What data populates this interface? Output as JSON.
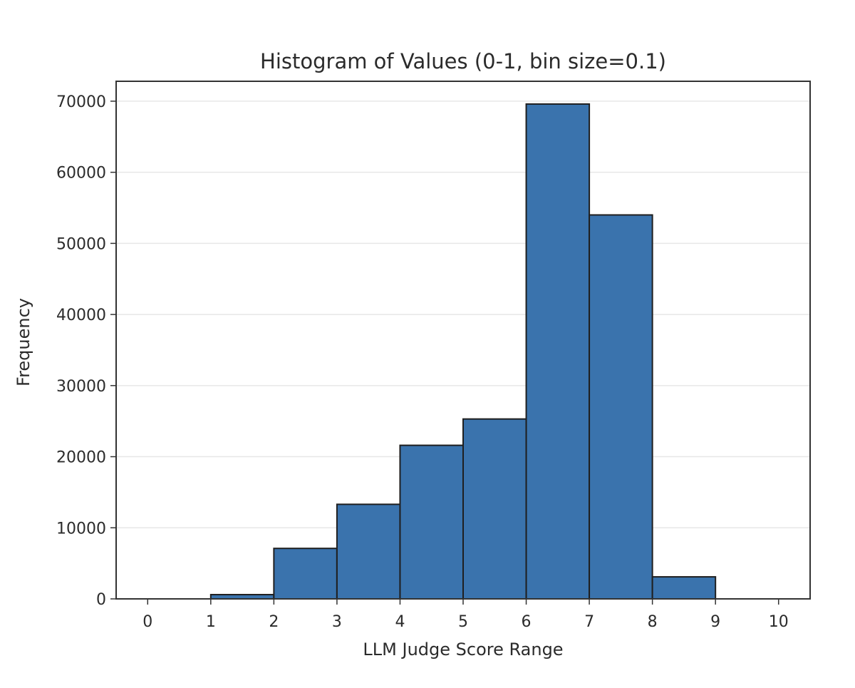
{
  "chart_data": {
    "type": "bar",
    "title": "Histogram of Values (0-1, bin size=0.1)",
    "xlabel": "LLM Judge Score Range",
    "ylabel": "Frequency",
    "bins": [
      {
        "start": 1,
        "end": 2,
        "value": 600
      },
      {
        "start": 2,
        "end": 3,
        "value": 7100
      },
      {
        "start": 3,
        "end": 4,
        "value": 13300
      },
      {
        "start": 4,
        "end": 5,
        "value": 21600
      },
      {
        "start": 5,
        "end": 6,
        "value": 25300
      },
      {
        "start": 6,
        "end": 7,
        "value": 69600
      },
      {
        "start": 7,
        "end": 8,
        "value": 54000
      },
      {
        "start": 8,
        "end": 9,
        "value": 3100
      }
    ],
    "xlim": [
      -0.5,
      10.5
    ],
    "ylim": [
      0,
      72800
    ],
    "xticks": [
      "0",
      "1",
      "2",
      "3",
      "4",
      "5",
      "6",
      "7",
      "8",
      "9",
      "10"
    ],
    "yticks": [
      "0",
      "10000",
      "20000",
      "30000",
      "40000",
      "50000",
      "60000",
      "70000"
    ],
    "grid": "horizontal",
    "bar_color": "#3a73ad",
    "edge_color": "#1f1f1f"
  }
}
